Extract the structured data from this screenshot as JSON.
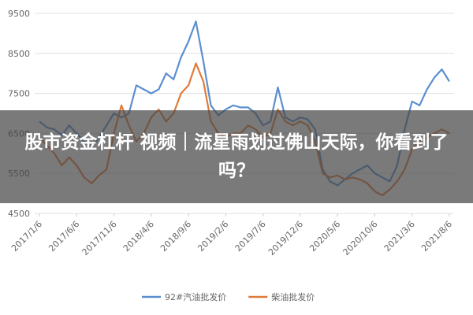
{
  "chart_data": {
    "type": "line",
    "categories": [
      "2017/1/6",
      null,
      null,
      null,
      null,
      "2017/6/6",
      null,
      null,
      null,
      null,
      "2017/11/6",
      null,
      null,
      null,
      null,
      "2018/4/6",
      null,
      null,
      null,
      null,
      "2018/9/6",
      null,
      null,
      null,
      null,
      "2019/2/6",
      null,
      null,
      null,
      null,
      "2019/7/6",
      null,
      null,
      null,
      null,
      "2019/12/6",
      null,
      null,
      null,
      null,
      "2020/5/6",
      null,
      null,
      null,
      null,
      "2020/10/6",
      null,
      null,
      null,
      null,
      "2021/3/6",
      null,
      null,
      null,
      null,
      "2021/8/6"
    ],
    "series": [
      {
        "name": "92#汽油批发价",
        "color": "#5b8fd0",
        "values": [
          6800,
          6650,
          6600,
          6450,
          6700,
          6500,
          6300,
          6150,
          6400,
          6700,
          7000,
          6900,
          7000,
          7700,
          7600,
          7500,
          7600,
          8000,
          7850,
          8400,
          8800,
          9300,
          8300,
          7200,
          6950,
          7100,
          7200,
          7150,
          7150,
          7000,
          6700,
          6800,
          7650,
          6900,
          6800,
          6900,
          6850,
          6600,
          5600,
          5300,
          5200,
          5350,
          5500,
          5600,
          5700,
          5500,
          5400,
          5300,
          5700,
          6600,
          7300,
          7200,
          7600,
          7900,
          8100,
          7800
        ]
      },
      {
        "name": "柴油批发价",
        "color": "#e07b39",
        "values": [
          6400,
          6200,
          6000,
          5700,
          5900,
          5700,
          5400,
          5250,
          5450,
          5600,
          6500,
          7200,
          6700,
          6300,
          6500,
          6900,
          7100,
          6800,
          7000,
          7500,
          7700,
          8250,
          7800,
          6800,
          6500,
          6400,
          6500,
          6500,
          6700,
          6600,
          6400,
          6500,
          7100,
          6800,
          6700,
          6800,
          6700,
          6300,
          5500,
          5400,
          5450,
          5350,
          5400,
          5350,
          5250,
          5050,
          4950,
          5100,
          5300,
          5600,
          6100,
          6300,
          6400,
          6500,
          6600,
          6500
        ]
      }
    ],
    "ylim": [
      4500,
      9500
    ],
    "yticks": [
      4500,
      5500,
      6500,
      7500,
      8500,
      9500
    ],
    "grid": true,
    "legend": "bottom"
  },
  "overlay": {
    "caption": "股市资金杠杆 视频｜流星雨划过佛山天际，你看到了吗？"
  }
}
